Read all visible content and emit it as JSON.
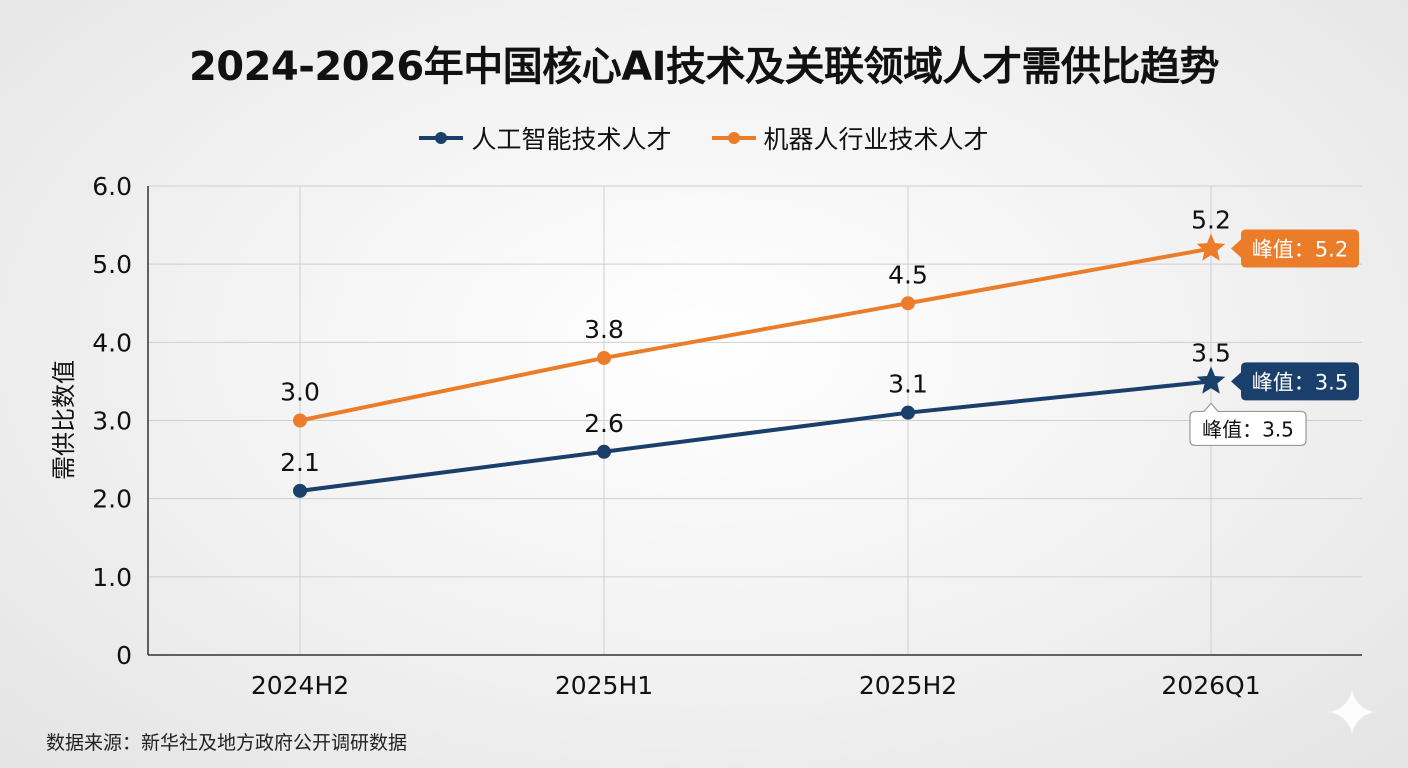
{
  "chart_data": {
    "type": "line",
    "title": "2024-2026年中国核心AI技术及关联领域人才需供比趋势",
    "xlabel": "",
    "ylabel": "需供比数值",
    "categories": [
      "2024H2",
      "2025H1",
      "2025H2",
      "2026Q1"
    ],
    "ylim": [
      0,
      6
    ],
    "yticks": [
      "0",
      "1.0",
      "2.0",
      "3.0",
      "4.0",
      "5.0",
      "6.0"
    ],
    "grid": true,
    "legend_position": "top",
    "series": [
      {
        "name": "人工智能技术人才",
        "color": "#1a3f6b",
        "values": [
          2.1,
          2.6,
          3.1,
          3.5
        ],
        "labels": [
          "2.1",
          "2.6",
          "3.1",
          "3.5"
        ]
      },
      {
        "name": "机器人行业技术人才",
        "color": "#eb7d2a",
        "values": [
          3.0,
          3.8,
          4.5,
          5.2
        ],
        "labels": [
          "3.0",
          "3.8",
          "4.5",
          "5.2"
        ]
      }
    ],
    "annotations": [
      {
        "series": 1,
        "text": "峰值：5.2",
        "style": "filled"
      },
      {
        "series": 0,
        "text": "峰值：3.5",
        "style": "filled"
      },
      {
        "series": 0,
        "text": "峰值：3.5",
        "style": "outline"
      }
    ],
    "source": "数据来源：新华社及地方政府公开调研数据"
  }
}
